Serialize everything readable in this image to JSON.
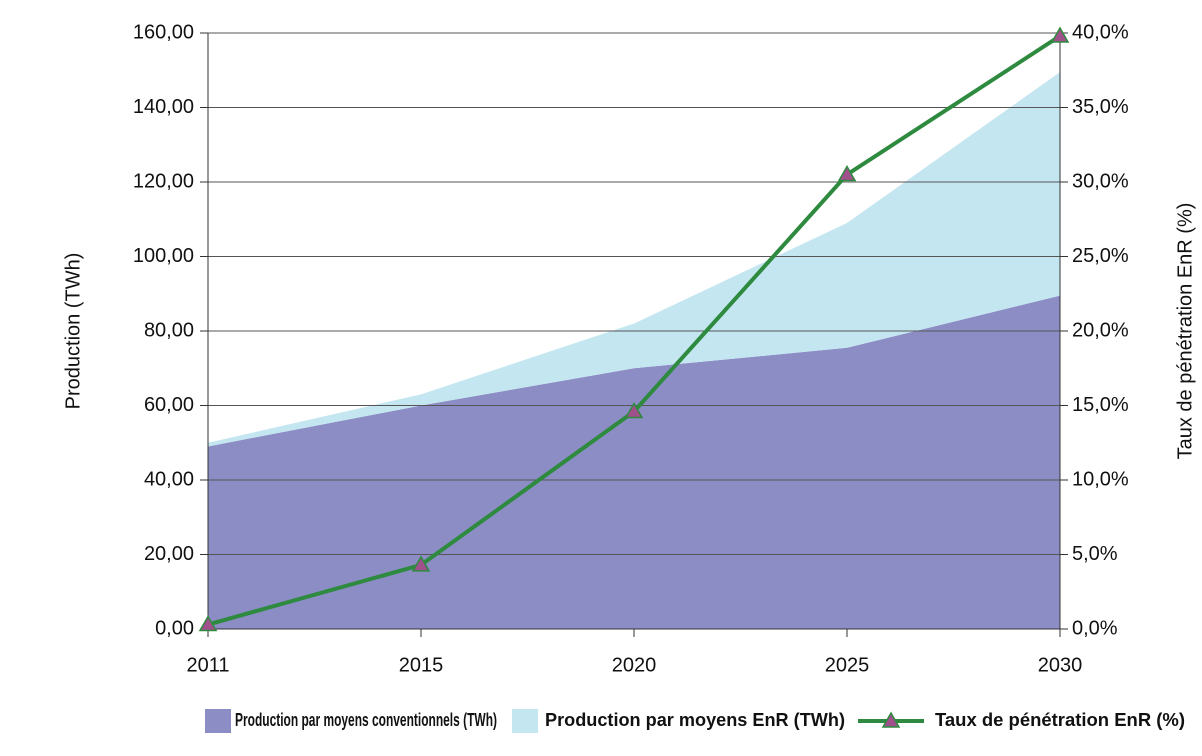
{
  "chart_data": {
    "type": "stacked-area-line",
    "categories": [
      "2011",
      "2015",
      "2020",
      "2025",
      "2030"
    ],
    "y_label": "Production (TWh)",
    "y2_label": "Taux de pénétration EnR (%)",
    "series": [
      {
        "name": "Production par moyens conventionnels (TWh)",
        "color": "#8b8dc4",
        "kind": "area",
        "values": [
          49,
          60,
          70,
          75.5,
          89.5
        ]
      },
      {
        "name": "Production par moyens EnR (TWh)",
        "color": "#c4e6f1",
        "kind": "area",
        "values": [
          1,
          3,
          12,
          33.5,
          60
        ]
      },
      {
        "name": "Taux de pénétration EnR (%)",
        "color": "#2d8a3e",
        "marker_color": "#a0508a",
        "kind": "line",
        "axis": "y2",
        "values": [
          0.3,
          4.3,
          14.6,
          30.5,
          39.8
        ]
      }
    ],
    "ylim": [
      0,
      160
    ],
    "yticks": [
      {
        "value": 0,
        "label": "0,00"
      },
      {
        "value": 20,
        "label": "20,00"
      },
      {
        "value": 40,
        "label": "40,00"
      },
      {
        "value": 60,
        "label": "60,00"
      },
      {
        "value": 80,
        "label": "80,00"
      },
      {
        "value": 100,
        "label": "100,00"
      },
      {
        "value": 120,
        "label": "120,00"
      },
      {
        "value": 140,
        "label": "140,00"
      },
      {
        "value": 160,
        "label": "160,00"
      }
    ],
    "y2lim": [
      0,
      40
    ],
    "y2ticks": [
      {
        "value": 0,
        "label": "0,0%"
      },
      {
        "value": 5,
        "label": "5,0%"
      },
      {
        "value": 10,
        "label": "10,0%"
      },
      {
        "value": 15,
        "label": "15,0%"
      },
      {
        "value": 20,
        "label": "20,0%"
      },
      {
        "value": 25,
        "label": "25,0%"
      },
      {
        "value": 30,
        "label": "30,0%"
      },
      {
        "value": 35,
        "label": "35,0%"
      },
      {
        "value": 40,
        "label": "40,0%"
      }
    ],
    "grid": true,
    "legend": "bottom"
  }
}
